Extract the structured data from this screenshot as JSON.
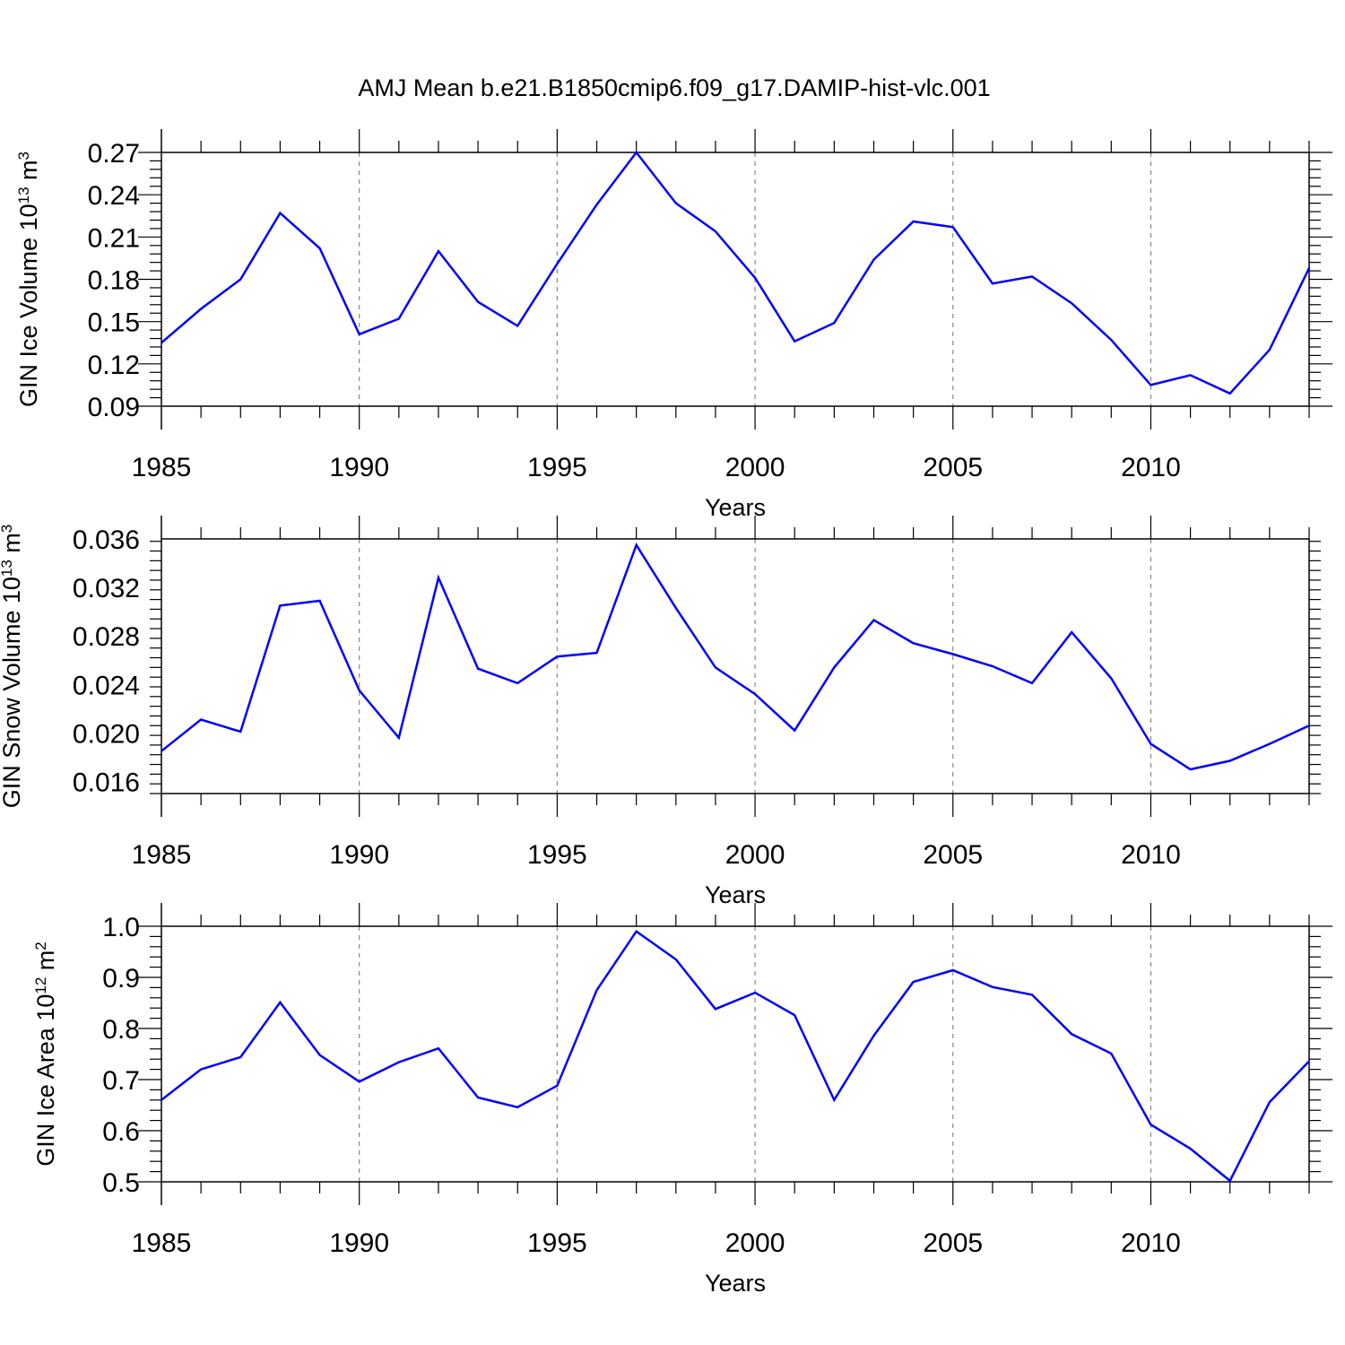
{
  "title": "AMJ Mean b.e21.B1850cmip6.f09_g17.DAMIP-hist-vlc.001",
  "colors": {
    "line": "#0000ff",
    "axis": "#000000",
    "grid": "#888888"
  },
  "chart_data": [
    {
      "type": "line",
      "ylabel_main": "GIN Ice Volume 10",
      "ylabel_sup": "13",
      "ylabel_unit": " m",
      "ylabel_unit_sup": "3",
      "xlabel": "Years",
      "xlim": [
        1985,
        2014
      ],
      "ylim": [
        0.09,
        0.27
      ],
      "yticks": [
        0.09,
        0.12,
        0.15,
        0.18,
        0.21,
        0.24,
        0.27
      ],
      "ytick_labels": [
        "0.09",
        "0.12",
        "0.15",
        "0.18",
        "0.21",
        "0.24",
        "0.27"
      ],
      "xticks": [
        1985,
        1990,
        1995,
        2000,
        2005,
        2010
      ],
      "xtick_labels": [
        "1985",
        "1990",
        "1995",
        "2000",
        "2005",
        "2010"
      ],
      "x": [
        1985,
        1986,
        1987,
        1988,
        1989,
        1990,
        1991,
        1992,
        1993,
        1994,
        1995,
        1996,
        1997,
        1998,
        1999,
        2000,
        2001,
        2002,
        2003,
        2004,
        2005,
        2006,
        2007,
        2008,
        2009,
        2010,
        2011,
        2012,
        2013,
        2014
      ],
      "series": [
        {
          "name": "GIN Ice Volume",
          "values": [
            0.135,
            0.159,
            0.18,
            0.227,
            0.202,
            0.141,
            0.152,
            0.2,
            0.164,
            0.147,
            0.191,
            0.233,
            0.27,
            0.234,
            0.214,
            0.181,
            0.136,
            0.149,
            0.194,
            0.221,
            0.217,
            0.177,
            0.182,
            0.163,
            0.137,
            0.105,
            0.112,
            0.099,
            0.13,
            0.188
          ]
        }
      ]
    },
    {
      "type": "line",
      "ylabel_main": "GIN Snow Volume 10",
      "ylabel_sup": "13",
      "ylabel_unit": " m",
      "ylabel_unit_sup": "3",
      "xlabel": "Years",
      "xlim": [
        1985,
        2014
      ],
      "ylim": [
        0.015,
        0.036
      ],
      "yticks": [
        0.016,
        0.02,
        0.024,
        0.028,
        0.032,
        0.036
      ],
      "ytick_labels": [
        "0.016",
        "0.020",
        "0.024",
        "0.028",
        "0.032",
        "0.036"
      ],
      "xticks": [
        1985,
        1990,
        1995,
        2000,
        2005,
        2010
      ],
      "xtick_labels": [
        "1985",
        "1990",
        "1995",
        "2000",
        "2005",
        "2010"
      ],
      "x": [
        1985,
        1986,
        1987,
        1988,
        1989,
        1990,
        1991,
        1992,
        1993,
        1994,
        1995,
        1996,
        1997,
        1998,
        1999,
        2000,
        2001,
        2002,
        2003,
        2004,
        2005,
        2006,
        2007,
        2008,
        2009,
        2010,
        2011,
        2012,
        2013,
        2014
      ],
      "series": [
        {
          "name": "GIN Snow Volume",
          "values": [
            0.0185,
            0.0211,
            0.0201,
            0.0305,
            0.0309,
            0.0235,
            0.0196,
            0.0328,
            0.0253,
            0.0241,
            0.0263,
            0.0266,
            0.0355,
            0.0303,
            0.0254,
            0.0232,
            0.0202,
            0.0254,
            0.0293,
            0.0274,
            0.0265,
            0.0255,
            0.0241,
            0.0283,
            0.0245,
            0.0191,
            0.017,
            0.0177,
            0.0191,
            0.0206
          ]
        }
      ]
    },
    {
      "type": "line",
      "ylabel_main": "GIN Ice Area 10",
      "ylabel_sup": "12",
      "ylabel_unit": " m",
      "ylabel_unit_sup": "2",
      "xlabel": "Years",
      "xlim": [
        1985,
        2014
      ],
      "ylim": [
        0.5,
        1.0
      ],
      "yticks": [
        0.5,
        0.6,
        0.7,
        0.8,
        0.9,
        1.0
      ],
      "ytick_labels": [
        "0.5",
        "0.6",
        "0.7",
        "0.8",
        "0.9",
        "1.0"
      ],
      "xticks": [
        1985,
        1990,
        1995,
        2000,
        2005,
        2010
      ],
      "xtick_labels": [
        "1985",
        "1990",
        "1995",
        "2000",
        "2005",
        "2010"
      ],
      "x": [
        1985,
        1986,
        1987,
        1988,
        1989,
        1990,
        1991,
        1992,
        1993,
        1994,
        1995,
        1996,
        1997,
        1998,
        1999,
        2000,
        2001,
        2002,
        2003,
        2004,
        2005,
        2006,
        2007,
        2008,
        2009,
        2010,
        2011,
        2012,
        2013,
        2014
      ],
      "series": [
        {
          "name": "GIN Ice Area",
          "values": [
            0.66,
            0.72,
            0.744,
            0.851,
            0.748,
            0.696,
            0.734,
            0.761,
            0.665,
            0.646,
            0.688,
            0.875,
            0.99,
            0.935,
            0.838,
            0.87,
            0.826,
            0.66,
            0.786,
            0.891,
            0.914,
            0.881,
            0.866,
            0.789,
            0.751,
            0.612,
            0.565,
            0.502,
            0.656,
            0.736
          ]
        }
      ]
    }
  ]
}
